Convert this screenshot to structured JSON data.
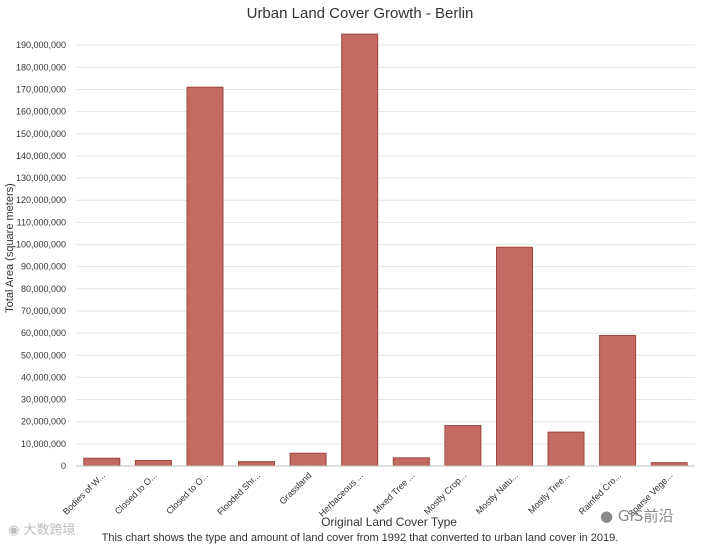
{
  "chart_data": {
    "type": "bar",
    "title": "Urban Land Cover Growth - Berlin",
    "xlabel": "Original Land Cover Type",
    "ylabel": "Total Area (square meters)",
    "caption": "This chart shows the type and amount of land cover from 1992 that converted to urban land cover in 2019.",
    "ylim": [
      0,
      190000000
    ],
    "ytick_step": 10000000,
    "grid": true,
    "categories": [
      "Bodies of W...",
      "Closed to O...",
      "Closed to O...",
      "Flooded Shr...",
      "Grassland",
      "Herbaceous ...",
      "Mixed Tree ...",
      "Mostly Crop...",
      "Mostly Natu...",
      "Mostly Tree...",
      "Rainfed Cro...",
      "Sparse Vege..."
    ],
    "values": [
      3500000,
      2500000,
      171000000,
      2000000,
      5800000,
      195000000,
      3700000,
      18300000,
      98800000,
      15300000,
      58900000,
      1500000
    ],
    "bar_color": "#c36a62",
    "bar_edge_color": "#9e463f"
  },
  "watermarks": {
    "left": "大数跨境",
    "right": "GIS前沿"
  }
}
